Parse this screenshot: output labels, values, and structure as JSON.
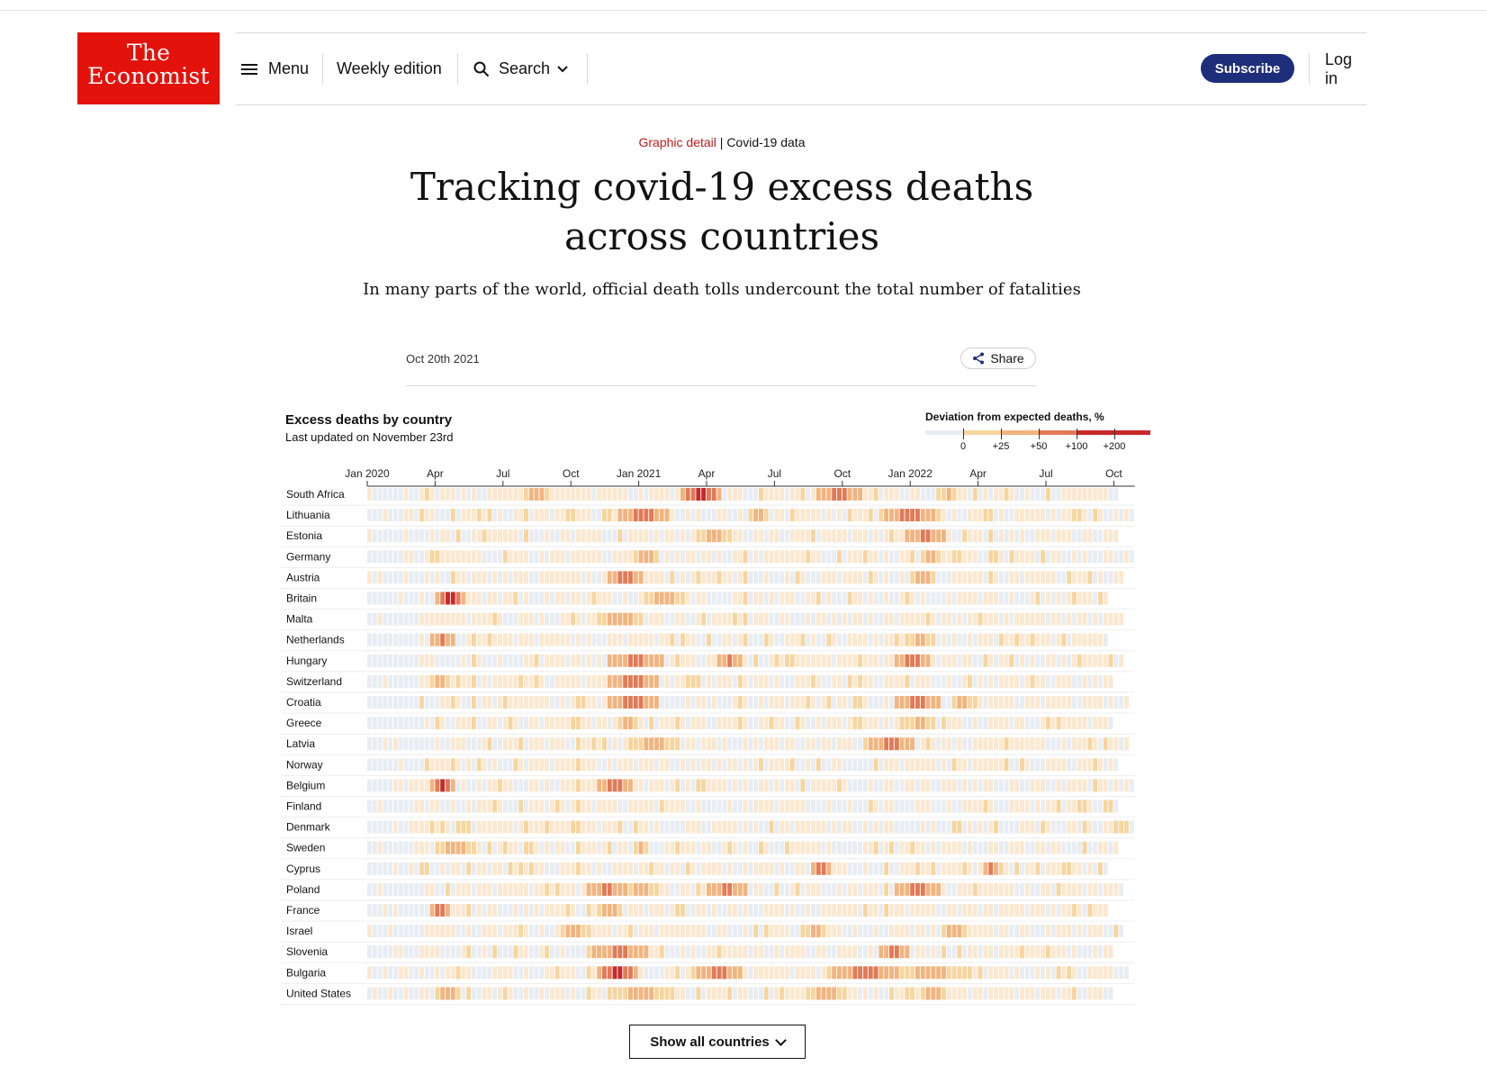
{
  "header": {
    "logo_line1": "The",
    "logo_line2": "Economist",
    "menu_label": "Menu",
    "weekly_edition_label": "Weekly edition",
    "search_label": "Search",
    "subscribe_label": "Subscribe",
    "login_label": "Log in"
  },
  "article": {
    "section": "Graphic detail",
    "separator": " | ",
    "topic": "Covid-19 data",
    "headline": "Tracking covid-19 excess deaths across countries",
    "standfirst": "In many parts of the world, official death tolls undercount the total number of fatalities",
    "date": "Oct 20th 2021",
    "share_label": "Share"
  },
  "colors": {
    "brand_red": "#e3120b",
    "subscribe_blue": "#1f2e7a",
    "negative": "#e8edf3",
    "bin_0_25": "#fbe8d0",
    "bin_25_50": "#f7d59e",
    "bin_50_100": "#f2b47f",
    "bin_100_200": "#e27a57",
    "bin_200_plus": "#c8282a"
  },
  "chart_data": {
    "type": "heatmap",
    "title": "Excess deaths by country",
    "subtitle": "Last updated on November 23rd",
    "legend_title": "Deviation from expected deaths, %",
    "legend_ticks": [
      "0",
      "+25",
      "+50",
      "+100",
      "+200"
    ],
    "x_ticks": [
      "Jan 2020",
      "Apr",
      "Jul",
      "Oct",
      "Jan 2021",
      "Apr",
      "Jul",
      "Oct",
      "Jan 2022",
      "Apr",
      "Jul",
      "Oct"
    ],
    "countries": [
      "South Africa",
      "Lithuania",
      "Estonia",
      "Germany",
      "Austria",
      "Britain",
      "Malta",
      "Netherlands",
      "Hungary",
      "Switzerland",
      "Croatia",
      "Greece",
      "Latvia",
      "Norway",
      "Belgium",
      "Finland",
      "Denmark",
      "Sweden",
      "Cyprus",
      "Poland",
      "France",
      "Israel",
      "Slovenia",
      "Bulgaria",
      "United States"
    ],
    "peaks": {
      "South Africa": [
        [
          30,
          34,
          2
        ],
        [
          60,
          67,
          4
        ],
        [
          86,
          94,
          3
        ],
        [
          110,
          112,
          2
        ]
      ],
      "Lithuania": [
        [
          23,
          23,
          1
        ],
        [
          48,
          57,
          3
        ],
        [
          73,
          76,
          2
        ],
        [
          98,
          109,
          3
        ]
      ],
      "Estonia": [
        [
          63,
          69,
          2
        ],
        [
          103,
          110,
          3
        ]
      ],
      "Germany": [
        [
          51,
          55,
          2
        ],
        [
          106,
          109,
          2
        ]
      ],
      "Austria": [
        [
          46,
          52,
          3
        ],
        [
          104,
          108,
          2
        ]
      ],
      "Britain": [
        [
          13,
          18,
          4
        ],
        [
          53,
          60,
          2
        ]
      ],
      "Malta": [
        [
          44,
          52,
          2
        ]
      ],
      "Netherlands": [
        [
          12,
          16,
          3
        ],
        [
          103,
          108,
          2
        ]
      ],
      "Hungary": [
        [
          46,
          56,
          3
        ],
        [
          67,
          71,
          3
        ],
        [
          101,
          107,
          3
        ]
      ],
      "Switzerland": [
        [
          12,
          15,
          2
        ],
        [
          46,
          55,
          3
        ]
      ],
      "Croatia": [
        [
          46,
          55,
          3
        ],
        [
          101,
          109,
          3
        ],
        [
          112,
          115,
          2
        ]
      ],
      "Greece": [
        [
          48,
          51,
          2
        ],
        [
          103,
          108,
          2
        ]
      ],
      "Latvia": [
        [
          50,
          59,
          2
        ],
        [
          96,
          104,
          3
        ]
      ],
      "Norway": [],
      "Belgium": [
        [
          12,
          16,
          4
        ],
        [
          44,
          50,
          3
        ]
      ],
      "Finland": [],
      "Denmark": [],
      "Sweden": [
        [
          13,
          20,
          2
        ],
        [
          51,
          53,
          2
        ]
      ],
      "Cyprus": [
        [
          85,
          88,
          3
        ],
        [
          118,
          120,
          3
        ]
      ],
      "Poland": [
        [
          42,
          49,
          3
        ],
        [
          49,
          55,
          2
        ],
        [
          65,
          72,
          3
        ],
        [
          101,
          109,
          3
        ]
      ],
      "France": [
        [
          12,
          15,
          3
        ],
        [
          44,
          48,
          2
        ]
      ],
      "Israel": [
        [
          37,
          41,
          2
        ],
        [
          84,
          87,
          2
        ],
        [
          110,
          114,
          2
        ]
      ],
      "Slovenia": [
        [
          43,
          53,
          3
        ],
        [
          98,
          103,
          3
        ]
      ],
      "Bulgaria": [
        [
          44,
          51,
          4
        ],
        [
          63,
          71,
          3
        ],
        [
          88,
          102,
          3
        ],
        [
          102,
          113,
          2
        ]
      ],
      "United States": [
        [
          13,
          17,
          2
        ],
        [
          46,
          58,
          2
        ],
        [
          84,
          91,
          2
        ],
        [
          106,
          110,
          2
        ]
      ]
    },
    "weeks_shown": 147
  },
  "show_all_label": "Show all countries"
}
